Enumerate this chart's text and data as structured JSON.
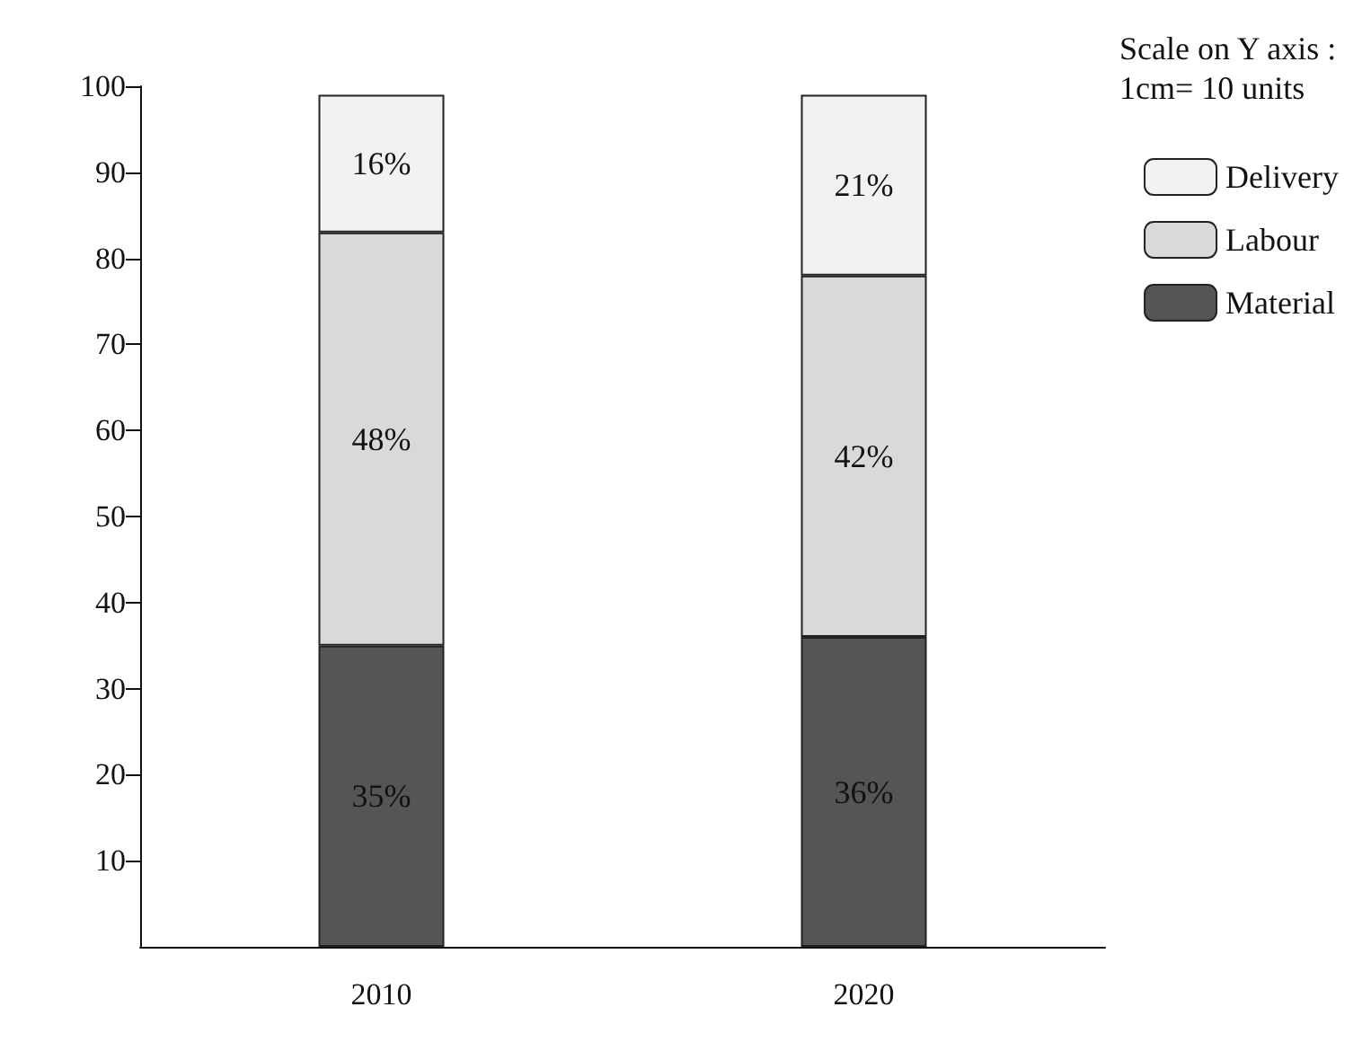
{
  "chart_data": {
    "type": "bar",
    "stacked": true,
    "categories": [
      "2010",
      "2020"
    ],
    "series": [
      {
        "name": "Material",
        "color": "#555555",
        "values": [
          35,
          36
        ],
        "value_labels": [
          "35%",
          "36%"
        ]
      },
      {
        "name": "Labour",
        "color": "#d9d9d9",
        "values": [
          48,
          42
        ],
        "value_labels": [
          "48%",
          "42%"
        ]
      },
      {
        "name": "Delivery",
        "color": "#f2f2f2",
        "values": [
          16,
          21
        ],
        "value_labels": [
          "16%",
          "21%"
        ]
      }
    ],
    "ylim": [
      0,
      100
    ],
    "yticks": [
      10,
      20,
      30,
      40,
      50,
      60,
      70,
      80,
      90,
      100
    ],
    "grid": false,
    "legend": "top right",
    "annotations": [
      "Scale on Y axis :\n1cm= 10 units"
    ]
  }
}
